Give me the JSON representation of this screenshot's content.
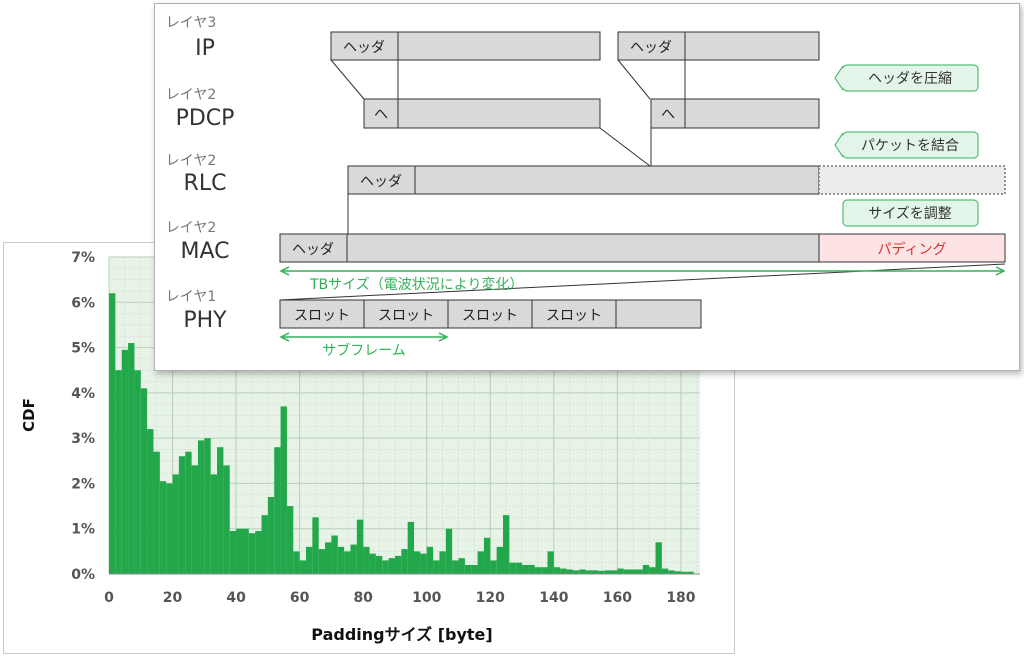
{
  "diagram": {
    "layers": [
      {
        "level": "レイヤ3",
        "name": "IP"
      },
      {
        "level": "レイヤ2",
        "name": "PDCP"
      },
      {
        "level": "レイヤ2",
        "name": "RLC"
      },
      {
        "level": "レイヤ2",
        "name": "MAC"
      },
      {
        "level": "レイヤ1",
        "name": "PHY"
      }
    ],
    "header_label": "ヘッダ",
    "short_header_label": "ヘ",
    "slot_label": "スロット",
    "padding_label": "パディング",
    "callouts": {
      "compress": "ヘッダを圧縮",
      "combine": "パケットを結合",
      "resize": "サイズを調整"
    },
    "tb_size_label": "TBサイズ（電波状況により変化）",
    "subframe_label": "サブフレーム",
    "colors": {
      "box_fill": "#d9d9d9",
      "green": "#33b05a",
      "callout_fill": "#e3f4e8",
      "padding_fill": "#fde3e3",
      "padding_text": "#e03030",
      "layer_text": "#777777"
    }
  },
  "chart": {
    "ylabel": "CDF",
    "xlabel": "Paddingサイズ [byte]",
    "xticks": [
      "0",
      "20",
      "40",
      "60",
      "80",
      "100",
      "120",
      "140",
      "160",
      "180"
    ],
    "yticks": [
      "0%",
      "1%",
      "2%",
      "3%",
      "4%",
      "5%",
      "6%",
      "7%"
    ]
  },
  "chart_data": {
    "type": "bar",
    "xlabel": "Paddingサイズ [byte]",
    "ylabel": "CDF",
    "xlim": [
      0,
      186
    ],
    "ylim": [
      0,
      7
    ],
    "y_unit": "%",
    "grid": true,
    "bar_color": "#22a84a",
    "x": [
      1,
      3,
      5,
      7,
      9,
      11,
      13,
      15,
      17,
      19,
      21,
      23,
      25,
      27,
      29,
      31,
      33,
      35,
      37,
      39,
      41,
      43,
      45,
      47,
      49,
      51,
      53,
      55,
      57,
      59,
      61,
      63,
      65,
      67,
      69,
      71,
      73,
      75,
      77,
      79,
      81,
      83,
      85,
      87,
      89,
      91,
      93,
      95,
      97,
      99,
      101,
      103,
      105,
      107,
      109,
      111,
      113,
      115,
      117,
      119,
      121,
      123,
      125,
      127,
      129,
      131,
      133,
      135,
      137,
      139,
      141,
      143,
      145,
      147,
      149,
      151,
      153,
      155,
      157,
      159,
      161,
      163,
      165,
      167,
      169,
      171,
      173,
      175,
      177,
      179,
      181,
      183
    ],
    "values": [
      6.2,
      4.5,
      4.95,
      5.1,
      4.5,
      4.1,
      3.2,
      2.7,
      2.05,
      2.0,
      2.2,
      2.6,
      2.7,
      2.4,
      2.95,
      3.0,
      2.2,
      2.8,
      2.4,
      0.95,
      1.0,
      1.0,
      0.9,
      0.95,
      1.3,
      1.7,
      2.8,
      3.7,
      1.5,
      0.5,
      0.3,
      0.6,
      1.25,
      0.55,
      0.7,
      0.85,
      0.6,
      0.5,
      0.65,
      1.2,
      0.6,
      0.45,
      0.4,
      0.3,
      0.35,
      0.4,
      0.55,
      1.15,
      0.5,
      0.45,
      0.6,
      0.3,
      0.5,
      1.0,
      0.3,
      0.35,
      0.2,
      0.2,
      0.5,
      0.8,
      0.3,
      0.6,
      1.3,
      0.25,
      0.25,
      0.2,
      0.2,
      0.15,
      0.15,
      0.5,
      0.15,
      0.12,
      0.1,
      0.08,
      0.1,
      0.08,
      0.08,
      0.07,
      0.08,
      0.08,
      0.12,
      0.1,
      0.1,
      0.1,
      0.2,
      0.15,
      0.7,
      0.12,
      0.08,
      0.06,
      0.05,
      0.05
    ]
  }
}
